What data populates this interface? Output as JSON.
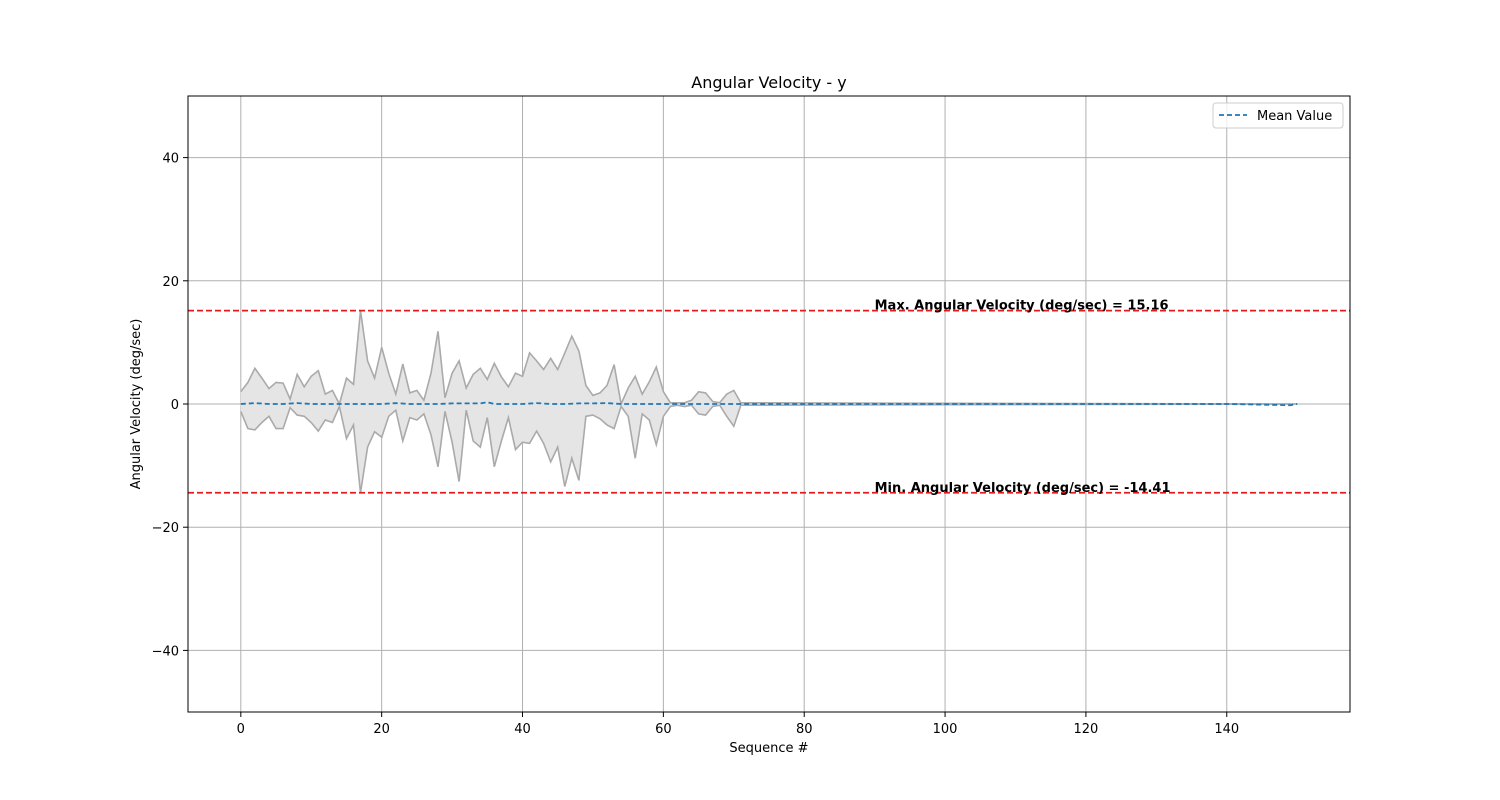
{
  "chart_data": {
    "type": "line",
    "title": "Angular Velocity - y",
    "xlabel": "Sequence #",
    "ylabel": "Angular Velocity (deg/sec)",
    "xlim": [
      -7.5,
      157.5
    ],
    "ylim": [
      -50,
      50
    ],
    "xticks": [
      0,
      20,
      40,
      60,
      80,
      100,
      120,
      140
    ],
    "yticks": [
      -40,
      -20,
      0,
      20,
      40
    ],
    "xtick_labels": [
      "0",
      "20",
      "40",
      "60",
      "80",
      "100",
      "120",
      "140"
    ],
    "ytick_labels": [
      "−40",
      "−20",
      "0",
      "20",
      "40"
    ],
    "grid": true,
    "legend": {
      "placement": "top-right",
      "entries": [
        "Mean Value"
      ]
    },
    "colors": {
      "mean": "#1f77b4",
      "band_fill": "#e5e5e5",
      "band_edge": "#aaaaaa",
      "threshold": "#e41a1c",
      "grid": "#b0b0b0"
    },
    "band": {
      "x": [
        0,
        1,
        2,
        3,
        4,
        5,
        6,
        7,
        8,
        9,
        10,
        11,
        12,
        13,
        14,
        15,
        16,
        17,
        18,
        19,
        20,
        21,
        22,
        23,
        24,
        25,
        26,
        27,
        28,
        29,
        30,
        31,
        32,
        33,
        34,
        35,
        36,
        37,
        38,
        39,
        40,
        41,
        42,
        43,
        44,
        45,
        46,
        47,
        48,
        49,
        50,
        51,
        52,
        53,
        54,
        55,
        56,
        57,
        58,
        59,
        60,
        61,
        62,
        63,
        64,
        65,
        66,
        67,
        68,
        69,
        70,
        71,
        150
      ],
      "upper": [
        2,
        3.5,
        5.8,
        4.2,
        2.5,
        3.5,
        3.4,
        0.8,
        4.8,
        2.8,
        4.5,
        5.4,
        1.6,
        2.2,
        0,
        4.2,
        3.2,
        15.16,
        7,
        4.2,
        9.2,
        5,
        1.6,
        6.5,
        1.8,
        2.2,
        0.6,
        5,
        11.8,
        1,
        5,
        7,
        2.6,
        4.8,
        5.8,
        4,
        6.6,
        4.4,
        2.8,
        5,
        4.5,
        8.3,
        7,
        5.6,
        7.4,
        5.6,
        8.3,
        11,
        8.6,
        3,
        1.4,
        1.8,
        3,
        6.4,
        0,
        2.6,
        4.5,
        1.6,
        3.6,
        6,
        2,
        0.2,
        0.2,
        0.2,
        0.6,
        2,
        1.8,
        0.4,
        0.2,
        1.6,
        2.2,
        0.2,
        0
      ],
      "lower": [
        -1.2,
        -4,
        -4.2,
        -3,
        -2,
        -4,
        -4,
        -0.6,
        -1.8,
        -2,
        -3,
        -4.4,
        -2.6,
        -3,
        -0.4,
        -5.6,
        -3.4,
        -14.41,
        -7,
        -4.5,
        -5.4,
        -2,
        -1,
        -6,
        -2.2,
        -2.6,
        -1.6,
        -5,
        -10.2,
        -1.2,
        -6.2,
        -12.6,
        -1,
        -6,
        -7,
        -2.2,
        -10.2,
        -6,
        -2.2,
        -7.4,
        -6.2,
        -6.4,
        -4.4,
        -6.4,
        -9.4,
        -7,
        -13.4,
        -8.8,
        -12.4,
        -2,
        -1.8,
        -2.4,
        -3.4,
        -4,
        -0.4,
        -2,
        -8.8,
        -1.6,
        -2.6,
        -6.6,
        -2,
        -0.4,
        -0.2,
        -0.4,
        -0.2,
        -1.6,
        -1.8,
        -0.4,
        -0.2,
        -2,
        -3.6,
        -0.2,
        0
      ]
    },
    "series": [
      {
        "name": "Mean Value",
        "x": [
          0,
          2,
          4,
          6,
          8,
          10,
          12,
          14,
          16,
          18,
          20,
          22,
          24,
          26,
          28,
          30,
          32,
          34,
          35,
          36,
          38,
          40,
          42,
          44,
          46,
          48,
          50,
          52,
          54,
          56,
          58,
          60,
          62,
          64,
          66,
          68,
          70,
          72,
          80,
          100,
          120,
          140,
          149,
          150
        ],
        "y": [
          0,
          0.15,
          0,
          0,
          0.15,
          0,
          0,
          0,
          0,
          0,
          0,
          0.15,
          0,
          0,
          0,
          0.1,
          0.1,
          0.1,
          0.3,
          0,
          0,
          0,
          0.15,
          0,
          0,
          0.1,
          0.1,
          0.15,
          0,
          0,
          0,
          0,
          0,
          0,
          0,
          0,
          0,
          0,
          0,
          0,
          0,
          0,
          -0.2,
          0
        ]
      }
    ],
    "annotations": [
      {
        "text": "Max. Angular Velocity (deg/sec) = 15.16",
        "x": 90,
        "y": 15.16
      },
      {
        "text": "Min. Angular Velocity (deg/sec) = -14.41",
        "x": 90,
        "y": -14.41
      }
    ],
    "hlines": [
      {
        "y": 15.16,
        "style": "dashed"
      },
      {
        "y": -14.41,
        "style": "dashed"
      }
    ]
  }
}
